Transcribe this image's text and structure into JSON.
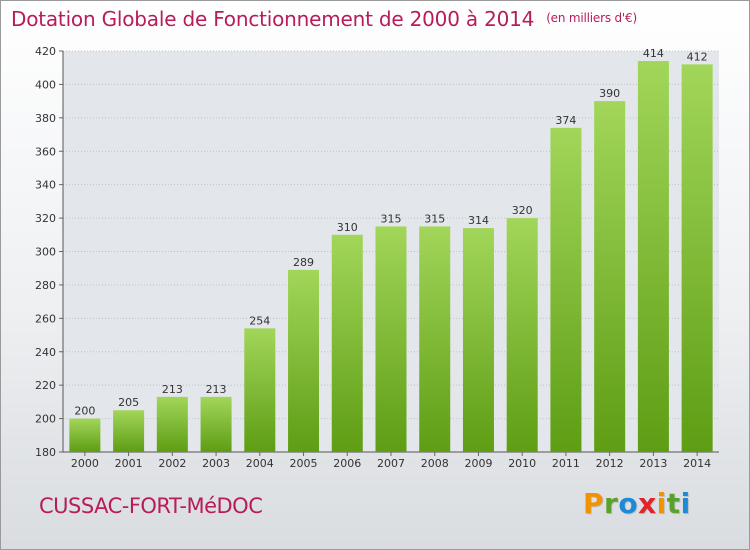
{
  "title": "Dotation Globale de Fonctionnement de 2000 à 2014",
  "unit_note": "(en milliers d'€)",
  "commune": "CUSSAC-FORT-MéDOC",
  "logo": {
    "letters": [
      "P",
      "r",
      "o",
      "x",
      "i",
      "t",
      "i"
    ],
    "colors": [
      "#f39200",
      "#5aa02c",
      "#1d8ad6",
      "#e2232a",
      "#f39200",
      "#5aa02c",
      "#1d8ad6"
    ]
  },
  "colors": {
    "title": "#b81c5a",
    "bar_light": "#a2d65a",
    "bar_dark": "#5e9d14"
  },
  "chart_data": {
    "type": "bar",
    "categories": [
      "2000",
      "2001",
      "2002",
      "2003",
      "2004",
      "2005",
      "2006",
      "2007",
      "2008",
      "2009",
      "2010",
      "2011",
      "2012",
      "2013",
      "2014"
    ],
    "values": [
      200,
      205,
      213,
      213,
      254,
      289,
      310,
      315,
      315,
      314,
      320,
      374,
      390,
      414,
      412
    ],
    "ylim": [
      180,
      420
    ],
    "yticks": [
      180,
      200,
      220,
      240,
      260,
      280,
      300,
      320,
      340,
      360,
      380,
      400,
      420
    ],
    "grid": true,
    "xlabel": "",
    "ylabel": ""
  }
}
